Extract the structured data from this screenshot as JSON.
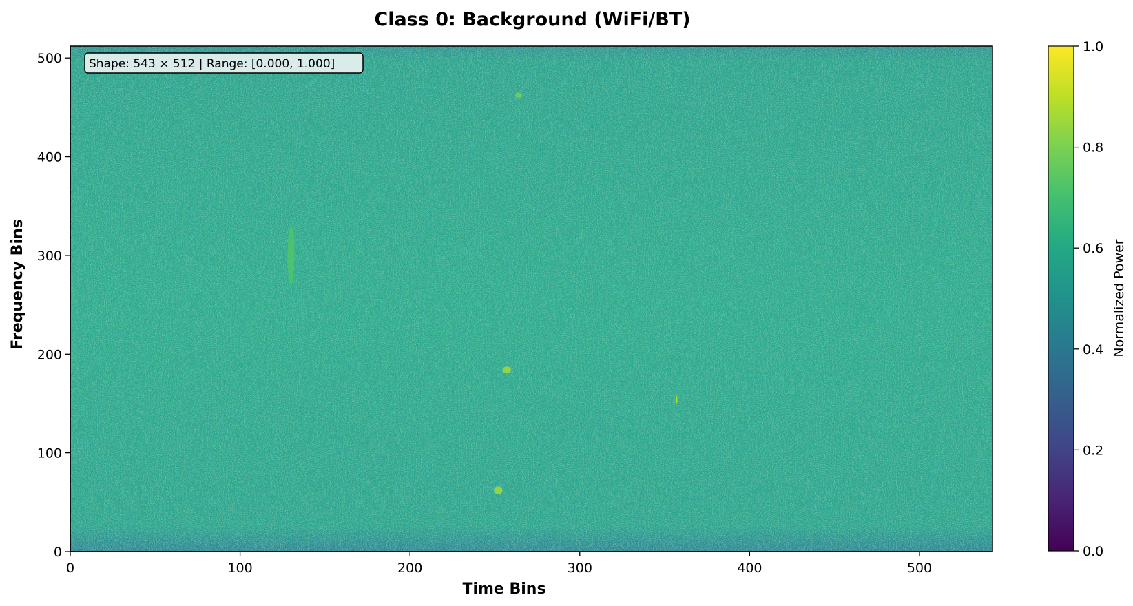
{
  "chart_data": {
    "type": "heatmap",
    "title": "Class 0: Background (WiFi/BT)",
    "xlabel": "Time Bins",
    "ylabel": "Frequency Bins",
    "xlim": [
      0,
      543
    ],
    "ylim": [
      0,
      512
    ],
    "xticks": [
      0,
      100,
      200,
      300,
      400,
      500
    ],
    "yticks": [
      0,
      100,
      200,
      300,
      400,
      500
    ],
    "colormap": "viridis",
    "colorbar": {
      "label": "Normalized Power",
      "range": [
        0.0,
        1.0
      ],
      "ticks": [
        "0.0",
        "0.2",
        "0.4",
        "0.6",
        "0.8",
        "1.0"
      ]
    },
    "annotation": "Shape: 543 × 512 | Range: [0.000, 1.000]",
    "background_level": 0.58,
    "bright_features": [
      {
        "time": 130,
        "freq": 300,
        "time_width": 4,
        "freq_width": 60,
        "value": 0.72
      },
      {
        "time": 264,
        "freq": 462,
        "time_width": 4,
        "freq_width": 6,
        "value": 0.78
      },
      {
        "time": 257,
        "freq": 184,
        "time_width": 5,
        "freq_width": 7,
        "value": 0.85
      },
      {
        "time": 252,
        "freq": 62,
        "time_width": 5,
        "freq_width": 8,
        "value": 0.85
      },
      {
        "time": 301,
        "freq": 320,
        "time_width": 1,
        "freq_width": 8,
        "value": 0.75
      },
      {
        "time": 357,
        "freq": 154,
        "time_width": 1,
        "freq_width": 8,
        "value": 0.9
      }
    ],
    "grid": false
  }
}
